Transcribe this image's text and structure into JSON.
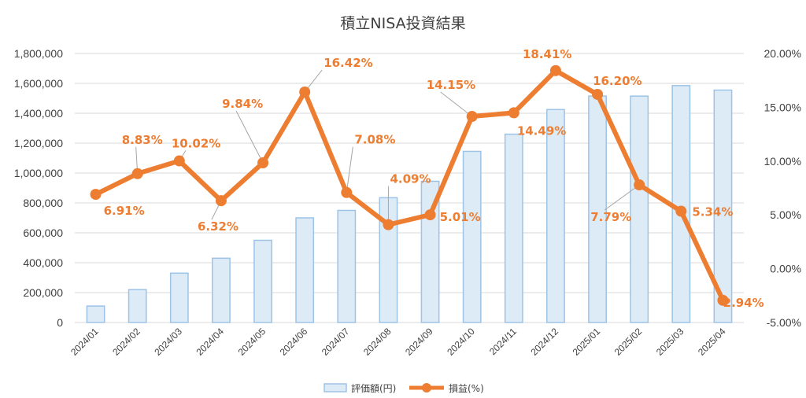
{
  "chart_data": {
    "type": "bar",
    "title": "積立NISA投資結果",
    "categories": [
      "2024/01",
      "2024/02",
      "2024/03",
      "2024/04",
      "2024/05",
      "2024/06",
      "2024/07",
      "2024/08",
      "2024/09",
      "2024/10",
      "2024/11",
      "2024/12",
      "2025/01",
      "2025/02",
      "2025/03",
      "2025/04"
    ],
    "series": [
      {
        "name": "評価額(円)",
        "type": "bar",
        "axis": "left",
        "values": [
          110000,
          220000,
          330000,
          430000,
          550000,
          700000,
          750000,
          835000,
          945000,
          1145000,
          1260000,
          1425000,
          1515000,
          1515000,
          1585000,
          1555000
        ]
      },
      {
        "name": "損益(%)",
        "type": "line",
        "axis": "right",
        "values": [
          6.91,
          8.83,
          10.02,
          6.32,
          9.84,
          16.42,
          7.08,
          4.09,
          5.01,
          14.15,
          14.49,
          18.41,
          16.2,
          7.79,
          5.34,
          -2.94
        ],
        "labels": [
          "6.91%",
          "8.83%",
          "10.02%",
          "6.32%",
          "9.84%",
          "16.42%",
          "7.08%",
          "4.09%",
          "5.01%",
          "14.15%",
          "14.49%",
          "18.41%",
          "16.20%",
          "7.79%",
          "5.34%",
          "-2.94%"
        ]
      }
    ],
    "y_left": {
      "ylim": [
        0,
        1800000
      ],
      "ticks": [
        "1,800,000",
        "1,600,000",
        "1,400,000",
        "1,200,000",
        "1,000,000",
        "800,000",
        "600,000",
        "400,000",
        "200,000",
        "0"
      ]
    },
    "y_right": {
      "ylim": [
        -5,
        20
      ],
      "ticks": [
        "20.00%",
        "15.00%",
        "10.00%",
        "5.00%",
        "0.00%",
        "-5.00%"
      ]
    },
    "grid": true,
    "legend_position": "bottom",
    "colors": {
      "bar_fill": "#DDEBF7",
      "bar_stroke": "#9DC3E6",
      "line": "#ED7D31",
      "grid": "#D9D9D9",
      "text": "#404040"
    }
  }
}
